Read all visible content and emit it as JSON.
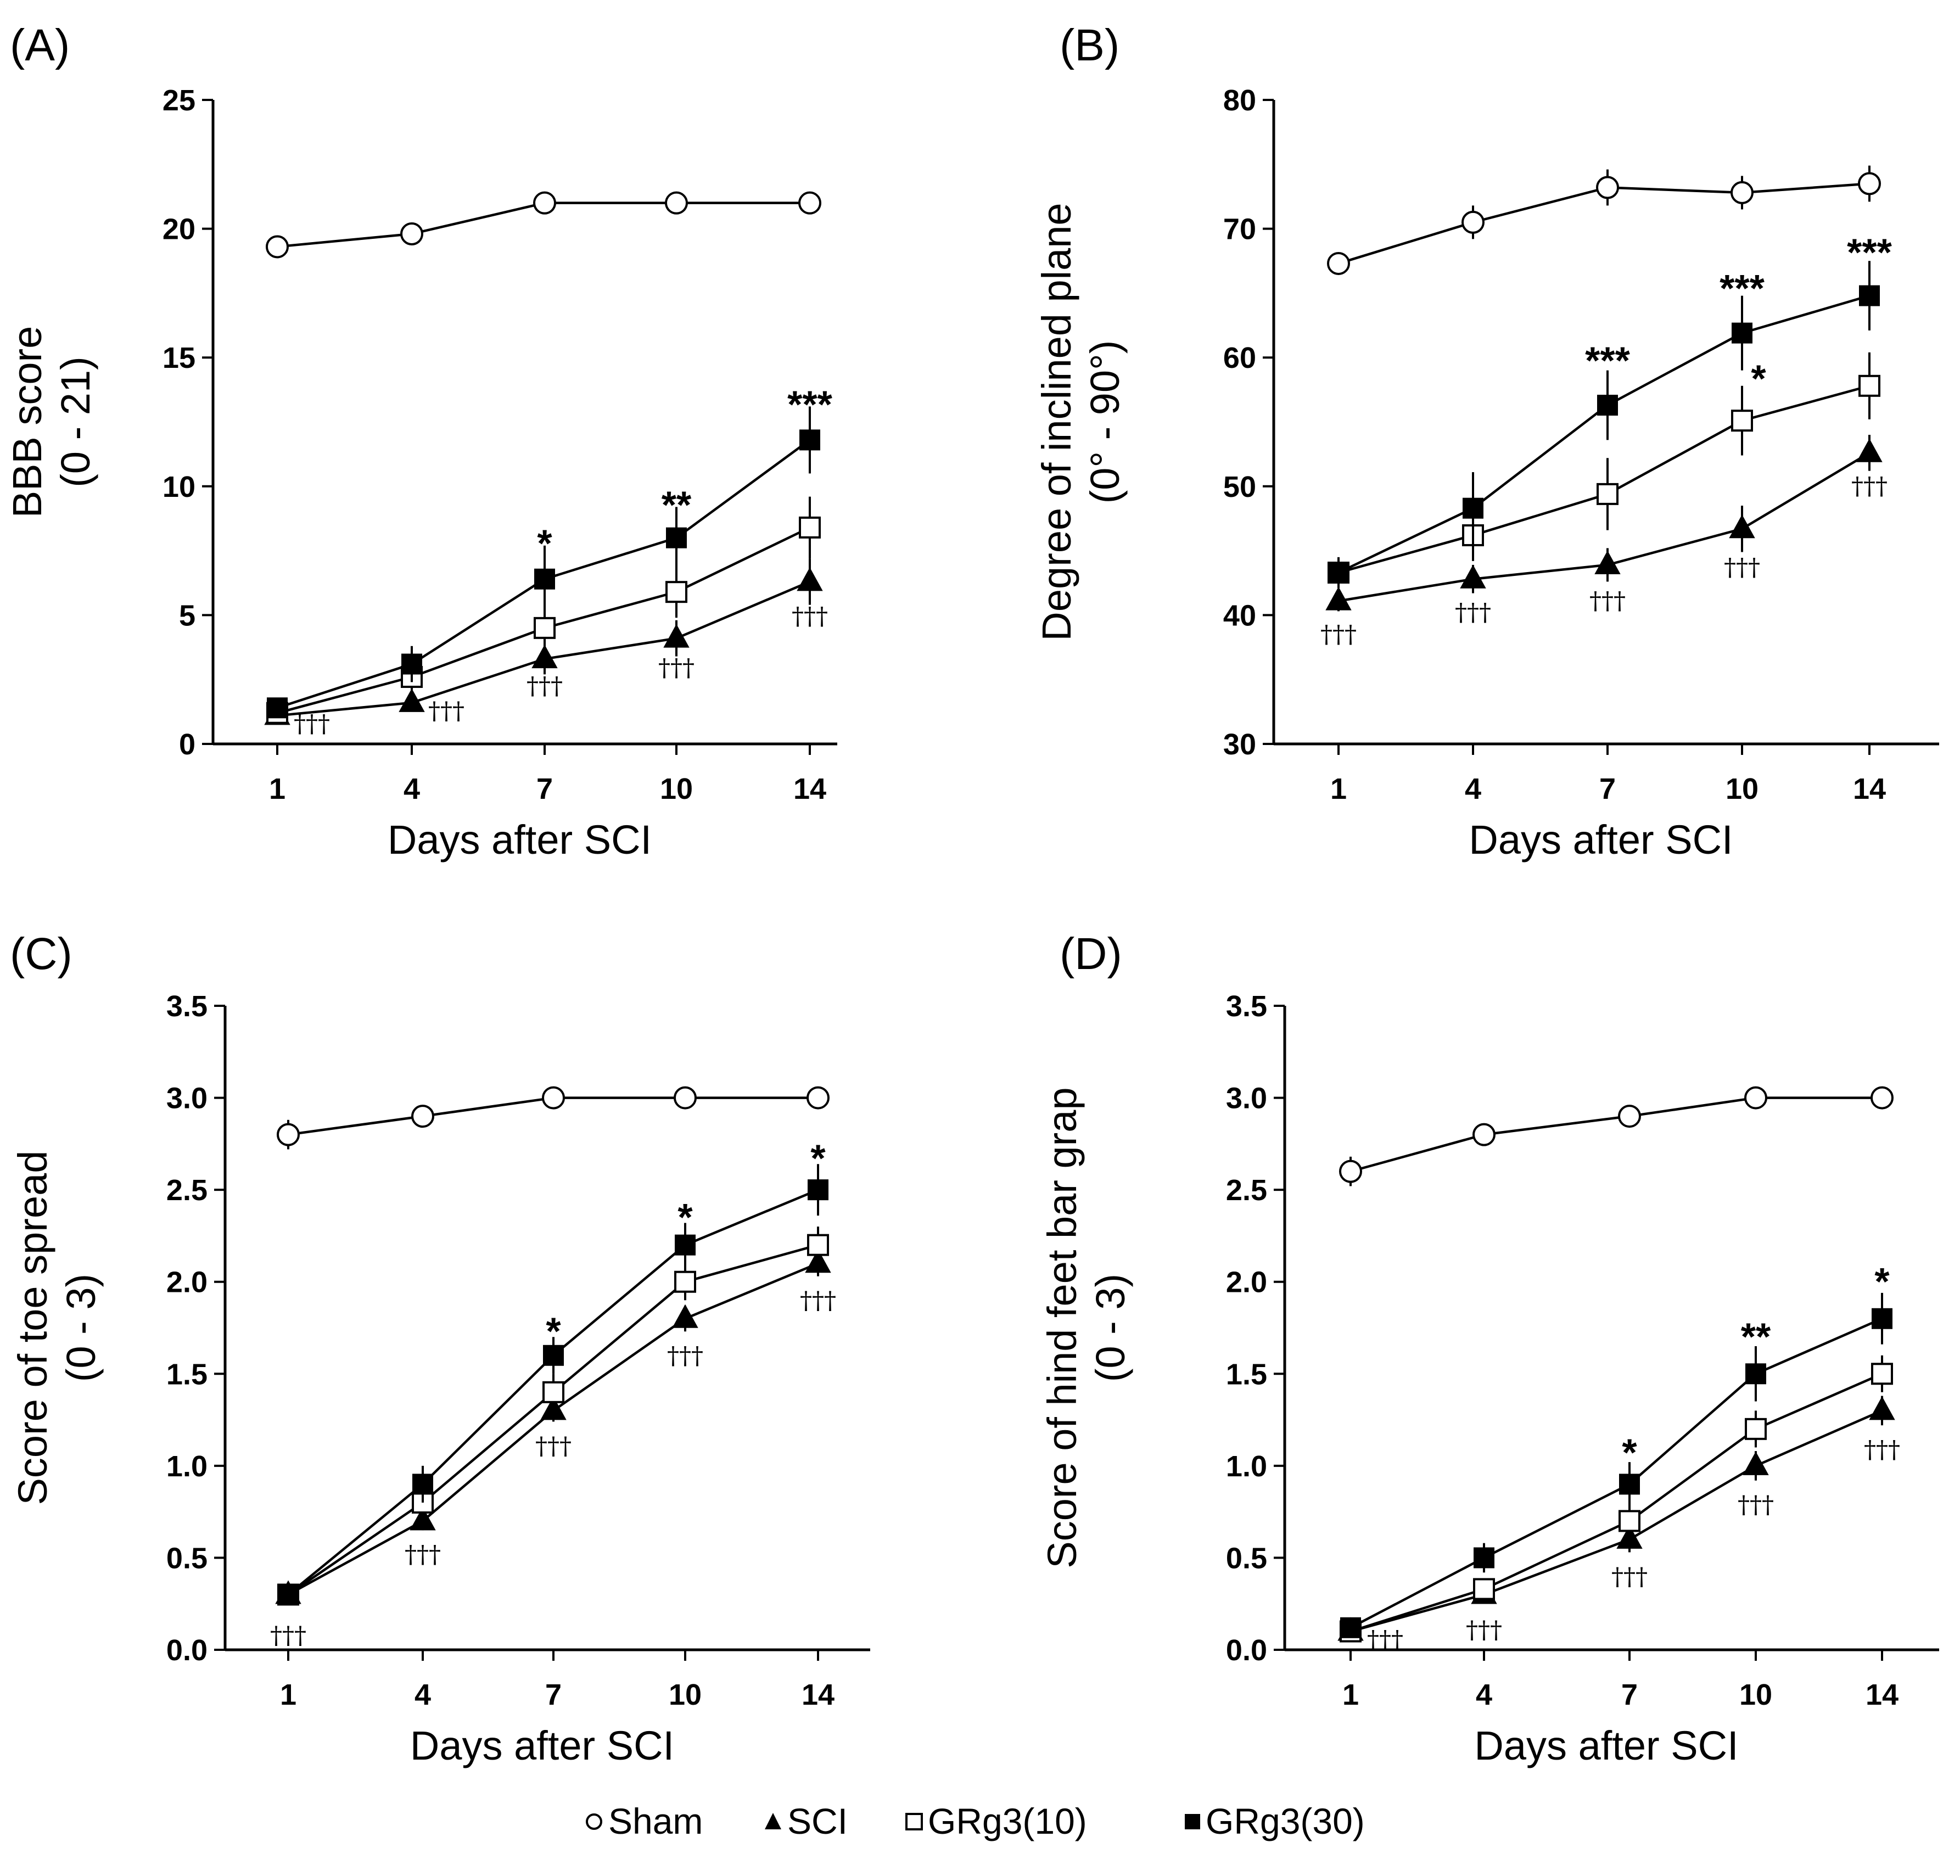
{
  "legend": {
    "items": [
      {
        "symbol": "circle-open",
        "label": "Sham"
      },
      {
        "symbol": "triangle-filled",
        "label": "SCI"
      },
      {
        "symbol": "square-open",
        "label": "GRg3(10)"
      },
      {
        "symbol": "square-filled",
        "label": "GRg3(30)"
      }
    ]
  },
  "chart_data": [
    {
      "type": "line",
      "panel_label": "(A)",
      "xlabel": "Days after SCI",
      "ylabel": [
        "BBB score",
        "(0 - 21)"
      ],
      "ylim": [
        0,
        25
      ],
      "yticks": [
        "0",
        "5",
        "10",
        "15",
        "20",
        "25"
      ],
      "categories": [
        "1",
        "4",
        "7",
        "10",
        "14"
      ],
      "series": [
        {
          "name": "Sham",
          "marker": "circle-open",
          "values": [
            19.3,
            19.8,
            21,
            21,
            21
          ],
          "errors": [
            0,
            0,
            0,
            0,
            0
          ]
        },
        {
          "name": "SCI",
          "marker": "triangle-filled",
          "values": [
            1.1,
            1.6,
            3.3,
            4.1,
            6.3
          ],
          "errors": [
            0.2,
            0.3,
            0.6,
            0.7,
            0.9
          ]
        },
        {
          "name": "GRg3(10)",
          "marker": "square-open",
          "values": [
            1.2,
            2.6,
            4.5,
            5.9,
            8.4
          ],
          "errors": [
            0.2,
            0.5,
            0.9,
            1.0,
            1.2
          ]
        },
        {
          "name": "GRg3(30)",
          "marker": "square-filled",
          "values": [
            1.4,
            3.1,
            6.4,
            8.0,
            11.8
          ],
          "errors": [
            0.2,
            0.7,
            1.3,
            1.2,
            1.3
          ]
        }
      ],
      "stars": [
        {
          "index": 2,
          "text": "*",
          "value": 7.7
        },
        {
          "index": 3,
          "text": "**",
          "value": 9.2
        },
        {
          "index": 4,
          "text": "***",
          "value": 13.1
        }
      ],
      "daggers": [
        {
          "index": 0,
          "text": "†††",
          "value": 1.1,
          "side": "right"
        },
        {
          "index": 1,
          "text": "†††",
          "value": 1.6,
          "side": "right"
        },
        {
          "index": 2,
          "text": "†††",
          "value": 2.7,
          "side": "below"
        },
        {
          "index": 3,
          "text": "†††",
          "value": 3.4,
          "side": "below"
        },
        {
          "index": 4,
          "text": "†††",
          "value": 5.4,
          "side": "below"
        }
      ]
    },
    {
      "type": "line",
      "panel_label": "(B)",
      "xlabel": "Days after SCI",
      "ylabel": [
        "Degree of inclined plane",
        "(0° - 90°)"
      ],
      "ylim": [
        30,
        80
      ],
      "yticks": [
        "30",
        "40",
        "50",
        "60",
        "70",
        "80"
      ],
      "categories": [
        "1",
        "4",
        "7",
        "10",
        "14"
      ],
      "series": [
        {
          "name": "Sham",
          "marker": "circle-open",
          "values": [
            67.3,
            70.5,
            73.2,
            72.8,
            73.5
          ],
          "errors": [
            0.5,
            1.3,
            1.4,
            1.3,
            1.4
          ]
        },
        {
          "name": "SCI",
          "marker": "triangle-filled",
          "values": [
            41.1,
            42.8,
            43.9,
            46.7,
            52.6
          ],
          "errors": [
            0.8,
            1.1,
            1.3,
            1.8,
            1.4
          ]
        },
        {
          "name": "GRg3(10)",
          "marker": "square-open",
          "values": [
            43.3,
            46.2,
            49.4,
            55.1,
            57.8
          ],
          "errors": [
            1.0,
            2.0,
            2.8,
            2.7,
            2.6
          ]
        },
        {
          "name": "GRg3(30)",
          "marker": "square-filled",
          "values": [
            43.3,
            48.3,
            56.3,
            61.9,
            64.8
          ],
          "errors": [
            1.2,
            2.8,
            2.7,
            2.9,
            2.7
          ]
        }
      ],
      "stars": [
        {
          "index": 2,
          "text": "***",
          "value": 59.6
        },
        {
          "index": 3,
          "text": "***",
          "value": 65.2
        },
        {
          "index": 3,
          "text": "*",
          "value": 58.2,
          "side": "right"
        },
        {
          "index": 4,
          "text": "***",
          "value": 68.0
        }
      ],
      "daggers": [
        {
          "index": 0,
          "text": "†††",
          "value": 39.4,
          "side": "below"
        },
        {
          "index": 1,
          "text": "†††",
          "value": 41.1,
          "side": "below"
        },
        {
          "index": 2,
          "text": "†††",
          "value": 42.0,
          "side": "below"
        },
        {
          "index": 3,
          "text": "†††",
          "value": 44.6,
          "side": "below"
        },
        {
          "index": 4,
          "text": "†††",
          "value": 50.9,
          "side": "below"
        }
      ]
    },
    {
      "type": "line",
      "panel_label": "(C)",
      "xlabel": "Days after SCI",
      "ylabel": [
        "Score of toe spread",
        "(0 - 3)"
      ],
      "ylim": [
        0,
        3.5
      ],
      "yticks": [
        "0.0",
        "0.5",
        "1.0",
        "1.5",
        "2.0",
        "2.5",
        "3.0",
        "3.5"
      ],
      "categories": [
        "1",
        "4",
        "7",
        "10",
        "14"
      ],
      "series": [
        {
          "name": "Sham",
          "marker": "circle-open",
          "values": [
            2.8,
            2.9,
            3.0,
            3.0,
            3.0
          ],
          "errors": [
            0.08,
            0.05,
            0,
            0,
            0
          ]
        },
        {
          "name": "SCI",
          "marker": "triangle-filled",
          "values": [
            0.3,
            0.7,
            1.3,
            1.8,
            2.1
          ],
          "errors": [
            0.03,
            0.05,
            0.06,
            0.07,
            0.07
          ]
        },
        {
          "name": "GRg3(10)",
          "marker": "square-open",
          "values": [
            0.3,
            0.8,
            1.4,
            2.0,
            2.2
          ],
          "errors": [
            0.03,
            0.07,
            0.1,
            0.1,
            0.1
          ]
        },
        {
          "name": "GRg3(30)",
          "marker": "square-filled",
          "values": [
            0.3,
            0.9,
            1.6,
            2.2,
            2.5
          ],
          "errors": [
            0.03,
            0.1,
            0.1,
            0.12,
            0.14
          ]
        }
      ],
      "stars": [
        {
          "index": 2,
          "text": "*",
          "value": 1.72
        },
        {
          "index": 3,
          "text": "*",
          "value": 2.34
        },
        {
          "index": 4,
          "text": "*",
          "value": 2.66
        }
      ],
      "daggers": [
        {
          "index": 0,
          "text": "†††",
          "value": 0.14,
          "side": "below"
        },
        {
          "index": 1,
          "text": "†††",
          "value": 0.58,
          "side": "below"
        },
        {
          "index": 2,
          "text": "†††",
          "value": 1.17,
          "side": "below"
        },
        {
          "index": 3,
          "text": "†††",
          "value": 1.66,
          "side": "below"
        },
        {
          "index": 4,
          "text": "†††",
          "value": 1.96,
          "side": "below"
        }
      ]
    },
    {
      "type": "line",
      "panel_label": "(D)",
      "xlabel": "Days after SCI",
      "ylabel": [
        "Score of hind feet bar grap",
        "(0 - 3)"
      ],
      "ylim": [
        0,
        3.5
      ],
      "yticks": [
        "0.0",
        "0.5",
        "1.0",
        "1.5",
        "2.0",
        "2.5",
        "3.0",
        "3.5"
      ],
      "categories": [
        "1",
        "4",
        "7",
        "10",
        "14"
      ],
      "series": [
        {
          "name": "Sham",
          "marker": "circle-open",
          "values": [
            2.6,
            2.8,
            2.9,
            3.0,
            3.0
          ],
          "errors": [
            0.08,
            0.06,
            0.03,
            0,
            0
          ]
        },
        {
          "name": "SCI",
          "marker": "triangle-filled",
          "values": [
            0.1,
            0.3,
            0.6,
            1.0,
            1.3
          ],
          "errors": [
            0.02,
            0.04,
            0.07,
            0.08,
            0.08
          ]
        },
        {
          "name": "GRg3(10)",
          "marker": "square-open",
          "values": [
            0.1,
            0.33,
            0.7,
            1.2,
            1.5
          ],
          "errors": [
            0.02,
            0.05,
            0.1,
            0.1,
            0.1
          ]
        },
        {
          "name": "GRg3(30)",
          "marker": "square-filled",
          "values": [
            0.12,
            0.5,
            0.9,
            1.5,
            1.8
          ],
          "errors": [
            0.03,
            0.08,
            0.12,
            0.15,
            0.14
          ]
        }
      ],
      "stars": [
        {
          "index": 2,
          "text": "*",
          "value": 1.06
        },
        {
          "index": 3,
          "text": "**",
          "value": 1.69
        },
        {
          "index": 4,
          "text": "*",
          "value": 1.99
        }
      ],
      "daggers": [
        {
          "index": 0,
          "text": "†††",
          "value": 0.1,
          "side": "right"
        },
        {
          "index": 1,
          "text": "†††",
          "value": 0.17,
          "side": "below"
        },
        {
          "index": 2,
          "text": "†††",
          "value": 0.46,
          "side": "below"
        },
        {
          "index": 3,
          "text": "†††",
          "value": 0.85,
          "side": "below"
        },
        {
          "index": 4,
          "text": "†††",
          "value": 1.15,
          "side": "below"
        }
      ]
    }
  ]
}
